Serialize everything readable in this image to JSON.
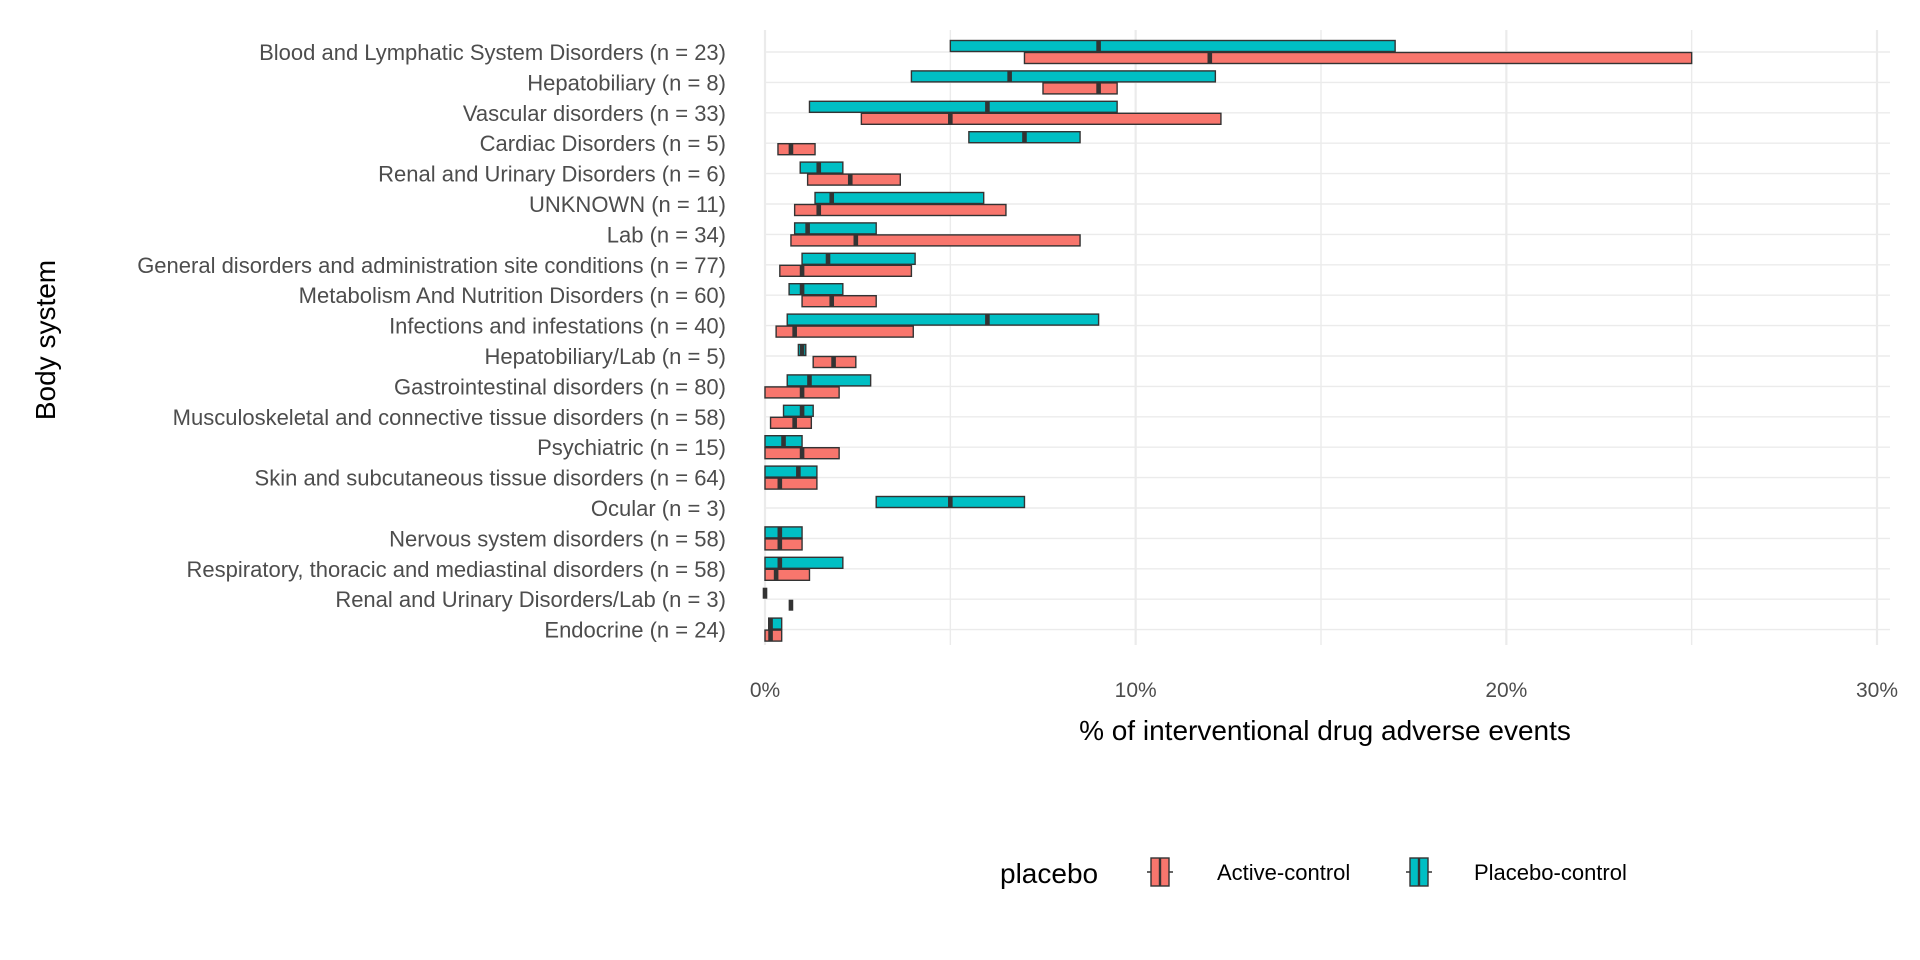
{
  "chart_data": {
    "type": "boxplot-horizontal",
    "xlabel": "% of interventional drug adverse events",
    "ylabel": "Body system",
    "xlim": [
      0,
      30
    ],
    "x_ticks": [
      0,
      10,
      20,
      30
    ],
    "x_tick_labels": [
      "0%",
      "10%",
      "20%",
      "30%"
    ],
    "grid": true,
    "legend": {
      "title": "placebo",
      "position": "bottom",
      "entries": [
        {
          "label": "Active-control",
          "color": "#F8766D"
        },
        {
          "label": "Placebo-control",
          "color": "#00BFC4"
        }
      ]
    },
    "categories": [
      "Blood and Lymphatic System Disorders (n = 23)",
      "Hepatobiliary (n = 8)",
      "Vascular disorders (n = 33)",
      "Cardiac Disorders (n = 5)",
      "Renal and Urinary Disorders (n = 6)",
      "UNKNOWN (n = 11)",
      "Lab (n = 34)",
      "General disorders and administration site conditions  (n = 77)",
      "Metabolism And Nutrition Disorders (n = 60)",
      "Infections and infestations (n = 40)",
      "Hepatobiliary/Lab (n = 5)",
      "Gastrointestinal disorders (n = 80)",
      "Musculoskeletal and connective tissue disorders  (n = 58)",
      "Psychiatric (n = 15)",
      "Skin and subcutaneous tissue disorders (n = 64)",
      "Ocular (n = 3)",
      "Nervous system disorders (n = 58)",
      "Respiratory, thoracic and mediastinal disorders (n = 58)",
      "Renal and Urinary Disorders/Lab (n = 3)",
      "Endocrine (n = 24)"
    ],
    "series": [
      {
        "name": "Active-control",
        "color": "#F8766D",
        "boxes": [
          {
            "q1": 7.0,
            "median": 12.0,
            "q3": 25.0
          },
          {
            "q1": 7.5,
            "median": 9.0,
            "q3": 9.5
          },
          {
            "q1": 2.6,
            "median": 5.0,
            "q3": 12.3
          },
          {
            "q1": 0.35,
            "median": 0.7,
            "q3": 1.35
          },
          {
            "q1": 1.15,
            "median": 2.3,
            "q3": 3.65
          },
          {
            "q1": 0.8,
            "median": 1.45,
            "q3": 6.5
          },
          {
            "q1": 0.7,
            "median": 2.45,
            "q3": 8.5
          },
          {
            "q1": 0.4,
            "median": 1.0,
            "q3": 3.95
          },
          {
            "q1": 1.0,
            "median": 1.8,
            "q3": 3.0
          },
          {
            "q1": 0.3,
            "median": 0.8,
            "q3": 4.0
          },
          {
            "q1": 1.3,
            "median": 1.85,
            "q3": 2.45
          },
          {
            "q1": 0.0,
            "median": 1.0,
            "q3": 2.0
          },
          {
            "q1": 0.15,
            "median": 0.8,
            "q3": 1.25
          },
          {
            "q1": 0.0,
            "median": 1.0,
            "q3": 2.0
          },
          {
            "q1": 0.0,
            "median": 0.4,
            "q3": 1.4
          },
          null,
          {
            "q1": 0.0,
            "median": 0.4,
            "q3": 1.0
          },
          {
            "q1": 0.0,
            "median": 0.3,
            "q3": 1.2
          },
          {
            "q1": 0.7,
            "median": 0.7,
            "q3": 0.7
          },
          {
            "q1": 0.0,
            "median": 0.15,
            "q3": 0.45
          }
        ]
      },
      {
        "name": "Placebo-control",
        "color": "#00BFC4",
        "boxes": [
          {
            "q1": 5.0,
            "median": 9.0,
            "q3": 17.0
          },
          {
            "q1": 3.95,
            "median": 6.6,
            "q3": 12.15
          },
          {
            "q1": 1.2,
            "median": 6.0,
            "q3": 9.5
          },
          {
            "q1": 5.5,
            "median": 7.0,
            "q3": 8.5
          },
          {
            "q1": 0.95,
            "median": 1.45,
            "q3": 2.1
          },
          {
            "q1": 1.35,
            "median": 1.8,
            "q3": 5.9
          },
          {
            "q1": 0.8,
            "median": 1.15,
            "q3": 3.0
          },
          {
            "q1": 1.0,
            "median": 1.7,
            "q3": 4.05
          },
          {
            "q1": 0.65,
            "median": 1.0,
            "q3": 2.1
          },
          {
            "q1": 0.6,
            "median": 6.0,
            "q3": 9.0
          },
          {
            "q1": 0.9,
            "median": 1.0,
            "q3": 1.1
          },
          {
            "q1": 0.6,
            "median": 1.2,
            "q3": 2.85
          },
          {
            "q1": 0.5,
            "median": 1.0,
            "q3": 1.3
          },
          {
            "q1": 0.0,
            "median": 0.5,
            "q3": 1.0
          },
          {
            "q1": 0.0,
            "median": 0.9,
            "q3": 1.4
          },
          {
            "q1": 3.0,
            "median": 5.0,
            "q3": 7.0
          },
          {
            "q1": 0.0,
            "median": 0.4,
            "q3": 1.0
          },
          {
            "q1": 0.0,
            "median": 0.4,
            "q3": 2.1
          },
          {
            "q1": 0.0,
            "median": 0.0,
            "q3": 0.0
          },
          {
            "q1": 0.1,
            "median": 0.15,
            "q3": 0.45
          }
        ]
      }
    ]
  }
}
